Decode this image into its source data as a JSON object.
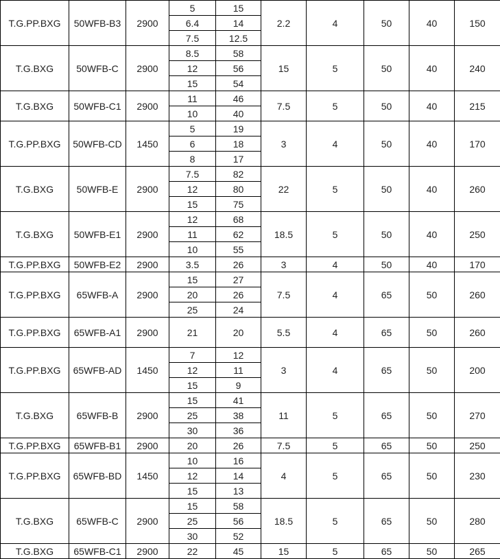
{
  "rows": [
    {
      "type": "T.G.PP.BXG",
      "model": "50WFB-B3",
      "speed": "2900",
      "points": [
        [
          "5",
          "15"
        ],
        [
          "6.4",
          "14"
        ],
        [
          "7.5",
          "12.5"
        ]
      ],
      "power": "2.2",
      "c6": "4",
      "c7": "50",
      "c8": "40",
      "c9": "150"
    },
    {
      "type": "T.G.BXG",
      "model": "50WFB-C",
      "speed": "2900",
      "points": [
        [
          "8.5",
          "58"
        ],
        [
          "12",
          "56"
        ],
        [
          "15",
          "54"
        ]
      ],
      "power": "15",
      "c6": "5",
      "c7": "50",
      "c8": "40",
      "c9": "240"
    },
    {
      "type": "T.G.BXG",
      "model": "50WFB-C1",
      "speed": "2900",
      "points": [
        [
          "11",
          "46"
        ],
        [
          "10",
          "40"
        ]
      ],
      "power": "7.5",
      "c6": "5",
      "c7": "50",
      "c8": "40",
      "c9": "215"
    },
    {
      "type": "T.G.PP.BXG",
      "model": "50WFB-CD",
      "speed": "1450",
      "points": [
        [
          "5",
          "19"
        ],
        [
          "6",
          "18"
        ],
        [
          "8",
          "17"
        ]
      ],
      "power": "3",
      "c6": "4",
      "c7": "50",
      "c8": "40",
      "c9": "170"
    },
    {
      "type": "T.G.BXG",
      "model": "50WFB-E",
      "speed": "2900",
      "points": [
        [
          "7.5",
          "82"
        ],
        [
          "12",
          "80"
        ],
        [
          "15",
          "75"
        ]
      ],
      "power": "22",
      "c6": "5",
      "c7": "50",
      "c8": "40",
      "c9": "260"
    },
    {
      "type": "T.G.BXG",
      "model": "50WFB-E1",
      "speed": "2900",
      "points": [
        [
          "12",
          "68"
        ],
        [
          "11",
          "62"
        ],
        [
          "10",
          "55"
        ]
      ],
      "power": "18.5",
      "c6": "5",
      "c7": "50",
      "c8": "40",
      "c9": "250"
    },
    {
      "type": "T.G.PP.BXG",
      "model": "50WFB-E2",
      "speed": "2900",
      "points": [
        [
          "3.5",
          "26"
        ]
      ],
      "power": "3",
      "c6": "4",
      "c7": "50",
      "c8": "40",
      "c9": "170"
    },
    {
      "type": "T.G.PP.BXG",
      "model": "65WFB-A",
      "speed": "2900",
      "points": [
        [
          "15",
          "27"
        ],
        [
          "20",
          "26"
        ],
        [
          "25",
          "24"
        ]
      ],
      "power": "7.5",
      "c6": "4",
      "c7": "65",
      "c8": "50",
      "c9": "260"
    },
    {
      "type": "T.G.PP.BXG",
      "model": "65WFB-A1",
      "speed": "2900",
      "points": [
        [
          "21",
          "20"
        ]
      ],
      "tall": true,
      "power": "5.5",
      "c6": "4",
      "c7": "65",
      "c8": "50",
      "c9": "260"
    },
    {
      "type": "T.G.PP.BXG",
      "model": "65WFB-AD",
      "speed": "1450",
      "points": [
        [
          "7",
          "12"
        ],
        [
          "12",
          "11"
        ],
        [
          "15",
          "9"
        ]
      ],
      "power": "3",
      "c6": "4",
      "c7": "65",
      "c8": "50",
      "c9": "200"
    },
    {
      "type": "T.G.BXG",
      "model": "65WFB-B",
      "speed": "2900",
      "points": [
        [
          "15",
          "41"
        ],
        [
          "25",
          "38"
        ],
        [
          "30",
          "36"
        ]
      ],
      "power": "11",
      "c6": "5",
      "c7": "65",
      "c8": "50",
      "c9": "270"
    },
    {
      "type": "T.G.PP.BXG",
      "model": "65WFB-B1",
      "speed": "2900",
      "points": [
        [
          "20",
          "26"
        ]
      ],
      "power": "7.5",
      "c6": "5",
      "c7": "65",
      "c8": "50",
      "c9": "250"
    },
    {
      "type": "T.G.PP.BXG",
      "model": "65WFB-BD",
      "speed": "1450",
      "points": [
        [
          "10",
          "16"
        ],
        [
          "12",
          "14"
        ],
        [
          "15",
          "13"
        ]
      ],
      "power": "4",
      "c6": "5",
      "c7": "65",
      "c8": "50",
      "c9": "230"
    },
    {
      "type": "T.G.BXG",
      "model": "65WFB-C",
      "speed": "2900",
      "points": [
        [
          "15",
          "58"
        ],
        [
          "25",
          "56"
        ],
        [
          "30",
          "52"
        ]
      ],
      "power": "18.5",
      "c6": "5",
      "c7": "65",
      "c8": "50",
      "c9": "280"
    },
    {
      "type": "T.G.BXG",
      "model": "65WFB-C1",
      "speed": "2900",
      "points": [
        [
          "22",
          "45"
        ]
      ],
      "power": "15",
      "c6": "5",
      "c7": "65",
      "c8": "50",
      "c9": "265"
    }
  ]
}
